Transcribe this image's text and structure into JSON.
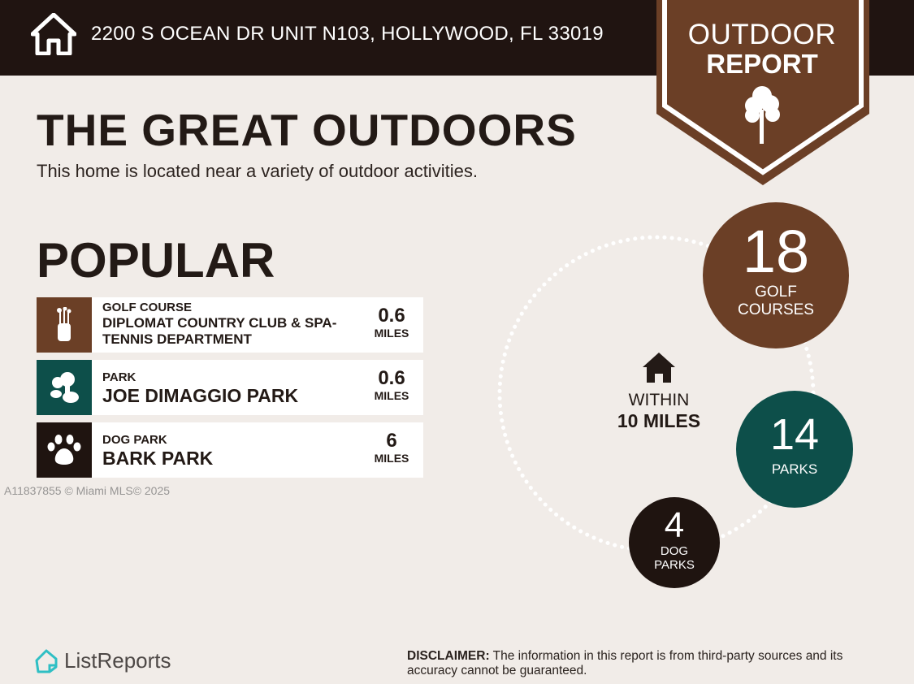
{
  "header": {
    "address": "2200 S OCEAN DR UNIT N103, HOLLYWOOD, FL 33019",
    "badge_line1": "OUTDOOR",
    "badge_line2": "REPORT"
  },
  "main": {
    "title": "THE GREAT OUTDOORS",
    "subtitle": "This home is located near a variety of outdoor activities.",
    "popular_heading": "POPULAR",
    "items": [
      {
        "category": "GOLF COURSE",
        "name": "DIPLOMAT COUNTRY CLUB & SPA-TENNIS DEPARTMENT",
        "distance": "0.6",
        "unit": "MILES",
        "icon": "golf-bag-icon",
        "color": "#6b3f26"
      },
      {
        "category": "PARK",
        "name": "JOE DIMAGGIO PARK",
        "distance": "0.6",
        "unit": "MILES",
        "icon": "trees-icon",
        "color": "#0d4f4a"
      },
      {
        "category": "DOG PARK",
        "name": "BARK PARK",
        "distance": "6",
        "unit": "MILES",
        "icon": "paw-icon",
        "color": "#1f1410"
      }
    ]
  },
  "summary": {
    "within_line1": "WITHIN",
    "within_line2": "10 MILES",
    "golf": {
      "count": "18",
      "label1": "GOLF",
      "label2": "COURSES",
      "color": "#6b3f26"
    },
    "parks": {
      "count": "14",
      "label1": "PARKS",
      "color": "#0d4f4a"
    },
    "dog": {
      "count": "4",
      "label1": "DOG",
      "label2": "PARKS",
      "color": "#1f1410"
    }
  },
  "watermark": "A11837855 © Miami MLS© 2025",
  "footer": {
    "brand": "ListReports",
    "disclaimer_label": "DISCLAIMER:",
    "disclaimer_text": " The information in this report is from third-party sources and its accuracy cannot be guaranteed."
  }
}
